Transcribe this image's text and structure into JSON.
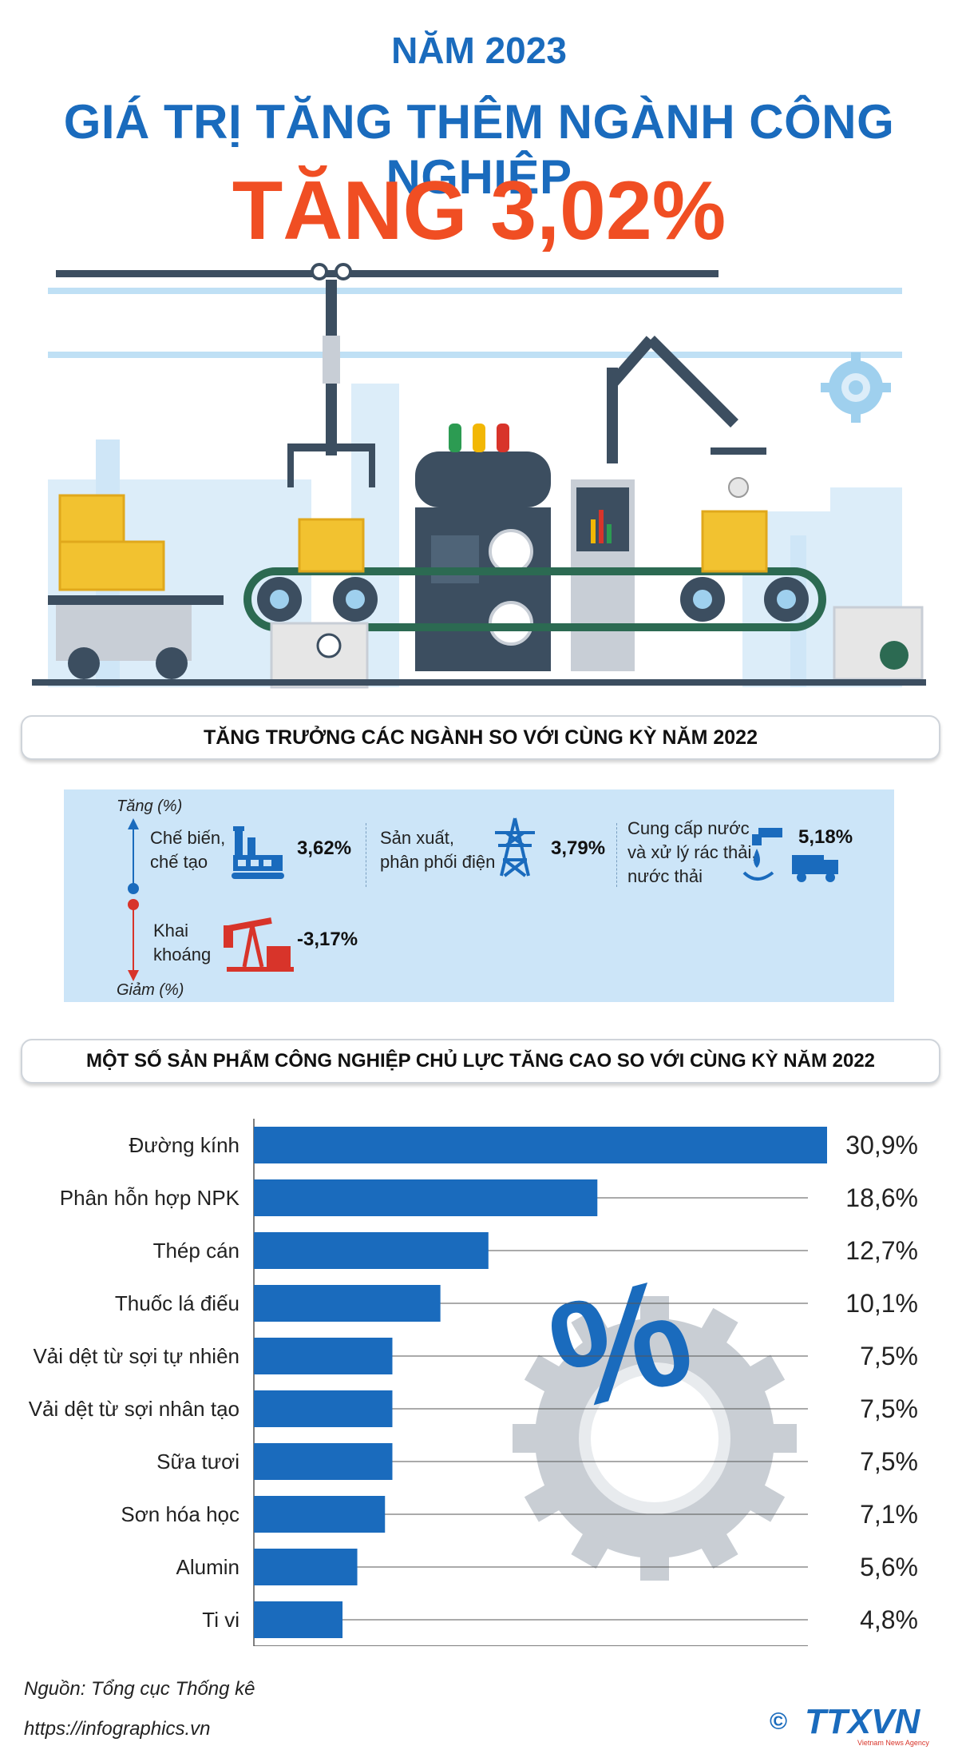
{
  "header": {
    "year": "NĂM 2023",
    "headline": "GIÁ TRỊ TĂNG THÊM NGÀNH CÔNG NGHIỆP",
    "big_value": "TĂNG 3,02%"
  },
  "growth": {
    "title": "TĂNG TRƯỞNG CÁC NGÀNH SO VỚI CÙNG KỲ NĂM 2022",
    "up_label": "Tăng (%)",
    "down_label": "Giảm (%)",
    "items": [
      {
        "line1": "Chế biến,",
        "line2": "chế tạo",
        "line3": "",
        "value": "3,62%",
        "icon": "factory-icon"
      },
      {
        "line1": "Sản xuất,",
        "line2": "phân phối điện",
        "line3": "",
        "value": "3,79%",
        "icon": "power-tower-icon"
      },
      {
        "line1": "Cung cấp nước",
        "line2": "và xử lý rác thải,",
        "line3": "nước thải",
        "value": "5,18%",
        "icon": "water-truck-icon"
      },
      {
        "line1": "Khai",
        "line2": "khoáng",
        "line3": "",
        "value": "-3,17%",
        "icon": "oil-pump-icon"
      }
    ]
  },
  "products": {
    "title": "MỘT SỐ SẢN PHẨM CÔNG NGHIỆP CHỦ LỰC TĂNG CAO SO VỚI CÙNG KỲ NĂM 2022"
  },
  "chart_data": {
    "type": "bar",
    "orientation": "horizontal",
    "categories": [
      "Đường kính",
      "Phân hỗn hợp NPK",
      "Thép cán",
      "Thuốc lá điếu",
      "Vải dệt từ sợi tự nhiên",
      "Vải dệt từ sợi nhân tạo",
      "Sữa tươi",
      "Sơn hóa học",
      "Alumin",
      "Ti vi"
    ],
    "values": [
      30.9,
      18.6,
      12.7,
      10.1,
      7.5,
      7.5,
      7.5,
      7.1,
      5.6,
      4.8
    ],
    "value_labels": [
      "30,9%",
      "18,6%",
      "12,7%",
      "10,1%",
      "7,5%",
      "7,5%",
      "7,5%",
      "7,1%",
      "5,6%",
      "4,8%"
    ],
    "xlim": [
      0,
      30
    ],
    "grid": true,
    "bar_color": "#1a6bbd"
  },
  "footer": {
    "source": "Nguồn: Tổng cục Thống kê",
    "url": "https://infographics.vn",
    "logo_text": "TTXVN",
    "logo_sub": "Vietnam News Agency",
    "copyright": "©"
  },
  "colors": {
    "blue": "#1a6bbd",
    "orange": "#f04e23",
    "light_blue": "#cce5f8"
  }
}
